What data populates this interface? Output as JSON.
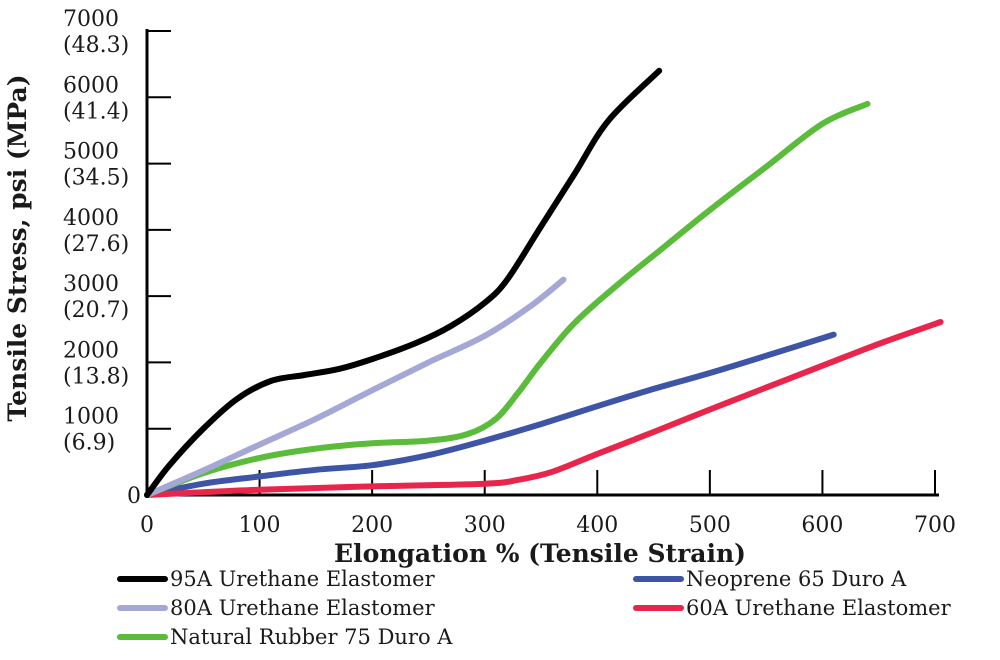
{
  "chart_data": {
    "type": "line",
    "title": "",
    "xlabel": "Elongation % (Tensile Strain)",
    "ylabel": "Tensile Stress, psi (MPa)",
    "xlim": [
      0,
      700
    ],
    "ylim": [
      0,
      7000
    ],
    "x_ticks": [
      "0",
      "100",
      "200",
      "300",
      "400",
      "500",
      "600",
      "700"
    ],
    "y_ticks": [
      {
        "value": 0,
        "psi": "0",
        "mpa": ""
      },
      {
        "value": 1000,
        "psi": "1000",
        "mpa": "(6.9)"
      },
      {
        "value": 2000,
        "psi": "2000",
        "mpa": "(13.8)"
      },
      {
        "value": 3000,
        "psi": "3000",
        "mpa": "(20.7)"
      },
      {
        "value": 4000,
        "psi": "4000",
        "mpa": "(27.6)"
      },
      {
        "value": 5000,
        "psi": "5000",
        "mpa": "(34.5)"
      },
      {
        "value": 6000,
        "psi": "6000",
        "mpa": "(41.4)"
      },
      {
        "value": 7000,
        "psi": "7000",
        "mpa": "(48.3)"
      }
    ],
    "grid": false,
    "legend_position": "bottom",
    "series": [
      {
        "name": "95A Urethane Elastomer",
        "color": "#000000",
        "points": [
          [
            0,
            0
          ],
          [
            20,
            450
          ],
          [
            50,
            1000
          ],
          [
            80,
            1450
          ],
          [
            110,
            1720
          ],
          [
            140,
            1810
          ],
          [
            170,
            1900
          ],
          [
            200,
            2050
          ],
          [
            240,
            2300
          ],
          [
            270,
            2550
          ],
          [
            300,
            2900
          ],
          [
            320,
            3250
          ],
          [
            350,
            4050
          ],
          [
            380,
            4850
          ],
          [
            410,
            5650
          ],
          [
            455,
            6400
          ]
        ]
      },
      {
        "name": "80A Urethane Elastomer",
        "color": "#a5a8d4",
        "points": [
          [
            0,
            0
          ],
          [
            50,
            370
          ],
          [
            100,
            760
          ],
          [
            150,
            1150
          ],
          [
            200,
            1580
          ],
          [
            250,
            2000
          ],
          [
            300,
            2400
          ],
          [
            340,
            2840
          ],
          [
            370,
            3250
          ]
        ]
      },
      {
        "name": "Natural Rubber 75 Duro A",
        "color": "#5bbb3a",
        "points": [
          [
            0,
            0
          ],
          [
            50,
            330
          ],
          [
            100,
            560
          ],
          [
            150,
            700
          ],
          [
            200,
            780
          ],
          [
            250,
            820
          ],
          [
            285,
            920
          ],
          [
            310,
            1150
          ],
          [
            330,
            1550
          ],
          [
            350,
            2000
          ],
          [
            380,
            2600
          ],
          [
            420,
            3200
          ],
          [
            460,
            3750
          ],
          [
            500,
            4300
          ],
          [
            550,
            4950
          ],
          [
            600,
            5600
          ],
          [
            640,
            5900
          ]
        ]
      },
      {
        "name": "Neoprene 65 Duro A",
        "color": "#3e55a6",
        "points": [
          [
            0,
            0
          ],
          [
            50,
            170
          ],
          [
            100,
            280
          ],
          [
            150,
            380
          ],
          [
            200,
            450
          ],
          [
            250,
            600
          ],
          [
            300,
            820
          ],
          [
            350,
            1070
          ],
          [
            400,
            1340
          ],
          [
            450,
            1600
          ],
          [
            500,
            1840
          ],
          [
            550,
            2100
          ],
          [
            610,
            2420
          ]
        ]
      },
      {
        "name": "60A Urethane Elastomer",
        "color": "#e8254a",
        "points": [
          [
            0,
            0
          ],
          [
            100,
            80
          ],
          [
            200,
            130
          ],
          [
            300,
            170
          ],
          [
            330,
            230
          ],
          [
            360,
            350
          ],
          [
            400,
            620
          ],
          [
            450,
            950
          ],
          [
            500,
            1290
          ],
          [
            550,
            1620
          ],
          [
            600,
            1950
          ],
          [
            650,
            2280
          ],
          [
            705,
            2610
          ]
        ]
      }
    ]
  }
}
